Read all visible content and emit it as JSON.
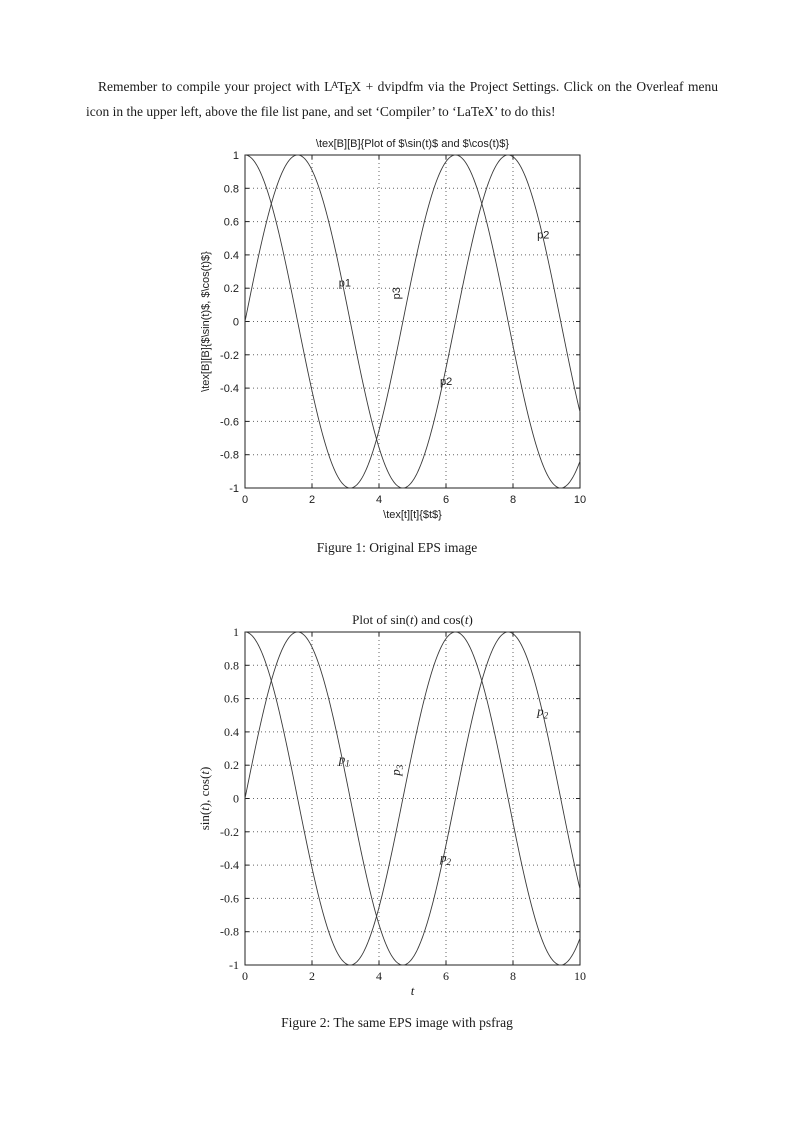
{
  "intro": {
    "part1": "Remember to compile your project with ",
    "latex_logo": [
      "L",
      "A",
      "T",
      "E",
      "X"
    ],
    "part2": " + dvipdfm via the Project Settings. Click on the Overleaf menu icon in the upper left, above the file list pane, and set ‘Compiler’ to ‘LaTeX’ to do this!"
  },
  "figures": [
    {
      "caption": "Figure 1: Original EPS image"
    },
    {
      "caption": "Figure 2: The same EPS image with psfrag"
    }
  ],
  "chart_data": [
    {
      "type": "line",
      "title": "\\tex[B][B]{Plot of $\\sin(t)$ and $\\cos(t)$}",
      "xlabel": "\\tex[t][t]{$t$}",
      "ylabel": "\\tex[B][B]{$\\sin(t)$, $\\cos(t)$}",
      "xlim": [
        0,
        10
      ],
      "ylim": [
        -1,
        1
      ],
      "xticks": [
        0,
        2,
        4,
        6,
        8,
        10
      ],
      "yticks": [
        1,
        0.8,
        0.6,
        0.4,
        0.2,
        0,
        -0.2,
        -0.4,
        -0.6,
        -0.8,
        -1
      ],
      "grid": "dotted",
      "legend": "none",
      "label_style": "sans",
      "series": [
        {
          "name": "sin(t)",
          "fn": "sin",
          "amplitude": 1,
          "x_range": [
            0,
            10
          ]
        },
        {
          "name": "cos(t)",
          "fn": "cos",
          "amplitude": 1,
          "x_range": [
            0,
            10
          ]
        }
      ],
      "annotations": [
        {
          "text": "p1",
          "x": 2.8,
          "y": 0.21,
          "rotate": 0,
          "anchor": "start"
        },
        {
          "text": "p3",
          "x": 4.62,
          "y": 0.17,
          "rotate": -90,
          "anchor": "middle"
        },
        {
          "text": "p2",
          "x": 8.72,
          "y": 0.5,
          "rotate": 0,
          "anchor": "start"
        },
        {
          "text": "p2",
          "x": 5.82,
          "y": -0.38,
          "rotate": 0,
          "anchor": "start"
        }
      ]
    },
    {
      "type": "line",
      "title": [
        {
          "text": "Plot of sin(",
          "italic": false
        },
        {
          "text": "t",
          "italic": true
        },
        {
          "text": ") and cos(",
          "italic": false
        },
        {
          "text": "t",
          "italic": true
        },
        {
          "text": ")",
          "italic": false
        }
      ],
      "xlabel": [
        {
          "text": "t",
          "italic": true
        }
      ],
      "ylabel": [
        {
          "text": "sin(",
          "italic": false
        },
        {
          "text": "t",
          "italic": true
        },
        {
          "text": "), cos(",
          "italic": false
        },
        {
          "text": "t",
          "italic": true
        },
        {
          "text": ")",
          "italic": false
        }
      ],
      "xlim": [
        0,
        10
      ],
      "ylim": [
        -1,
        1
      ],
      "xticks": [
        0,
        2,
        4,
        6,
        8,
        10
      ],
      "yticks": [
        1,
        0.8,
        0.6,
        0.4,
        0.2,
        0,
        -0.2,
        -0.4,
        -0.6,
        -0.8,
        -1
      ],
      "grid": "dotted",
      "legend": "none",
      "label_style": "serif-italic",
      "series": [
        {
          "name": "sin(t)",
          "fn": "sin",
          "amplitude": 1,
          "x_range": [
            0,
            10
          ]
        },
        {
          "name": "cos(t)",
          "fn": "cos",
          "amplitude": 1,
          "x_range": [
            0,
            10
          ]
        }
      ],
      "annotations": [
        {
          "text": "p",
          "sub": "1",
          "x": 2.8,
          "y": 0.21,
          "rotate": 0,
          "anchor": "start"
        },
        {
          "text": "p",
          "sub": "3",
          "x": 4.62,
          "y": 0.17,
          "rotate": -90,
          "anchor": "middle"
        },
        {
          "text": "p",
          "sub": "2",
          "x": 8.72,
          "y": 0.5,
          "rotate": 0,
          "anchor": "start"
        },
        {
          "text": "p",
          "sub": "2",
          "x": 5.82,
          "y": -0.38,
          "rotate": 0,
          "anchor": "start"
        }
      ]
    }
  ]
}
